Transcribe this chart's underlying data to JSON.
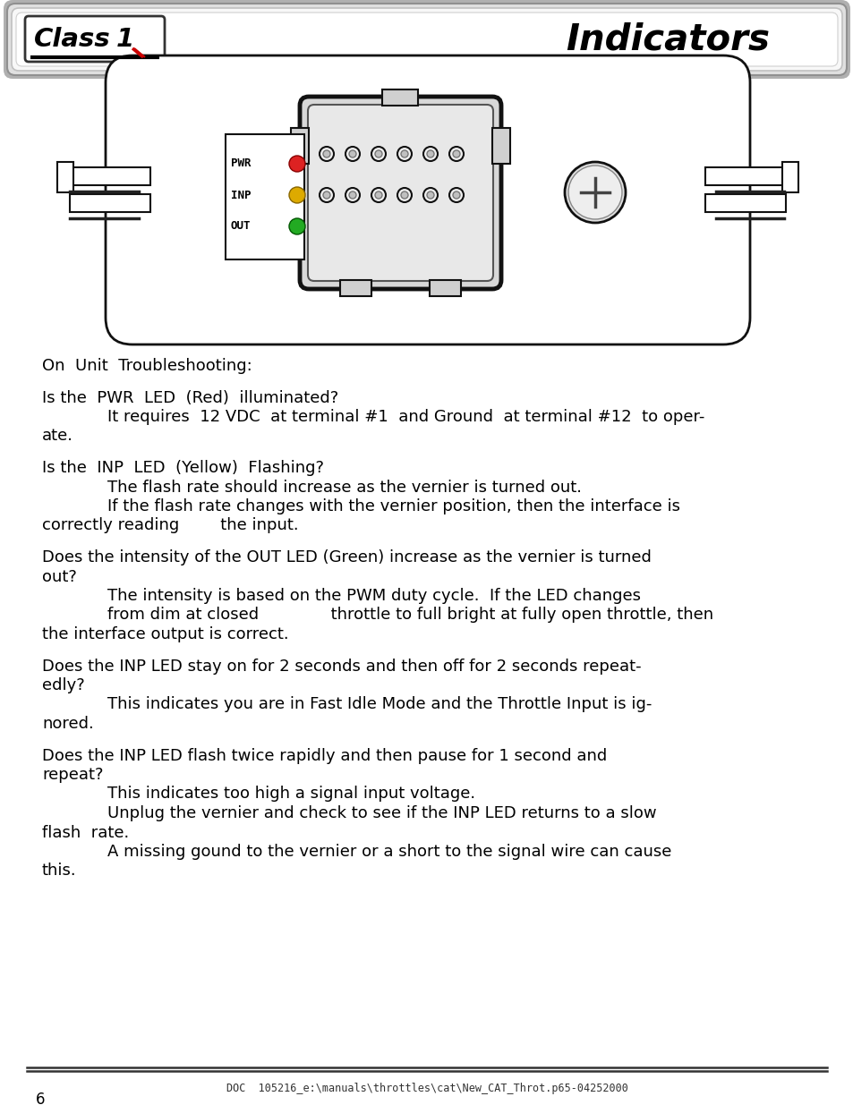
{
  "bg_color": "#ffffff",
  "page_number": "6",
  "footer_text": "DOC  105216_e:\\manuals\\throttles\\cat\\New_CAT_Throt.p65-04252000",
  "led_red_color": "#dd2222",
  "led_yellow_color": "#ddaa00",
  "led_green_color": "#22aa22",
  "connector_outline": "#111111",
  "device_outline": "#111111",
  "paragraphs": [
    {
      "indent": 0,
      "text": "On  Unit  Troubleshooting:"
    },
    {
      "indent": -1,
      "text": ""
    },
    {
      "indent": 0,
      "text": "Is the  PWR  LED  (Red)  illuminated?"
    },
    {
      "indent": 1,
      "text": "It requires  12 VDC  at terminal #1  and Ground  at terminal #12  to oper-"
    },
    {
      "indent": 0,
      "text": "ate."
    },
    {
      "indent": -1,
      "text": ""
    },
    {
      "indent": 0,
      "text": "Is the  INP  LED  (Yellow)  Flashing?"
    },
    {
      "indent": 1,
      "text": "The flash rate should increase as the vernier is turned out."
    },
    {
      "indent": 1,
      "text": "If the flash rate changes with the vernier position, then the interface is"
    },
    {
      "indent": 0,
      "text": "correctly reading        the input."
    },
    {
      "indent": -1,
      "text": ""
    },
    {
      "indent": 0,
      "text": "Does the intensity of the OUT LED (Green) increase as the vernier is turned"
    },
    {
      "indent": 0,
      "text": "out?"
    },
    {
      "indent": 1,
      "text": "The intensity is based on the PWM duty cycle.  If the LED changes"
    },
    {
      "indent": 1,
      "text": "from dim at closed              throttle to full bright at fully open throttle, then"
    },
    {
      "indent": 0,
      "text": "the interface output is correct."
    },
    {
      "indent": -1,
      "text": ""
    },
    {
      "indent": 0,
      "text": "Does the INP LED stay on for 2 seconds and then off for 2 seconds repeat-"
    },
    {
      "indent": 0,
      "text": "edly?"
    },
    {
      "indent": 1,
      "text": "This indicates you are in Fast Idle Mode and the Throttle Input is ig-"
    },
    {
      "indent": 0,
      "text": "nored."
    },
    {
      "indent": -1,
      "text": ""
    },
    {
      "indent": 0,
      "text": "Does the INP LED flash twice rapidly and then pause for 1 second and"
    },
    {
      "indent": 0,
      "text": "repeat?"
    },
    {
      "indent": 1,
      "text": "This indicates too high a signal input voltage."
    },
    {
      "indent": 1,
      "text": "Unplug the vernier and check to see if the INP LED returns to a slow"
    },
    {
      "indent": 0,
      "text": "flash  rate."
    },
    {
      "indent": 1,
      "text": "A missing gound to the vernier or a short to the signal wire can cause"
    },
    {
      "indent": 0,
      "text": "this."
    }
  ]
}
